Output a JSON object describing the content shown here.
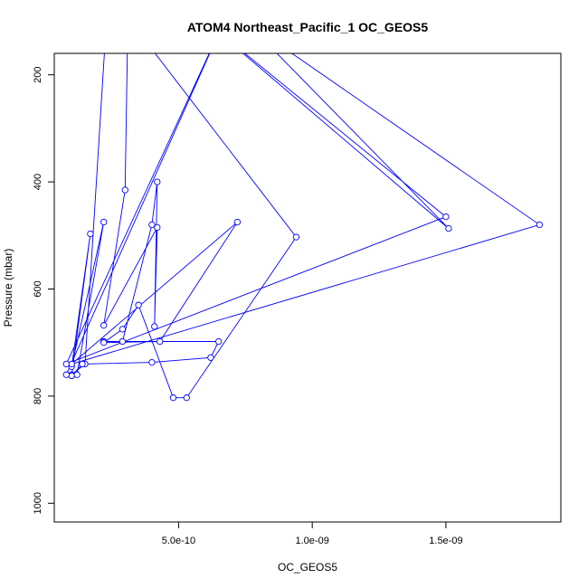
{
  "chart_data": {
    "type": "line",
    "title": "ATOM4 Northeast_Pacific_1 OC_GEOS5",
    "xlabel": "OC_GEOS5",
    "ylabel": "Pressure (mbar)",
    "xlim": [
      3.5e-11,
      1.93e-09
    ],
    "ylim": [
      1035,
      160
    ],
    "y_reversed": true,
    "x_ticks": [
      5e-10,
      1e-09,
      1.5e-09
    ],
    "x_tick_labels": [
      "5.0e-10",
      "1.0e-09",
      "1.5e-09"
    ],
    "y_ticks": [
      200,
      400,
      600,
      800,
      1000
    ],
    "y_tick_labels": [
      "200",
      "400",
      "600",
      "800",
      "1000"
    ],
    "grid": false,
    "colors": {
      "series": "#0000ff",
      "axis": "#000000"
    },
    "series": [
      {
        "points": [
          [
            2.3e-10,
            100
          ],
          [
            1.5e-10,
            740
          ],
          [
            1e-10,
            760
          ],
          [
            1e-10,
            762
          ],
          [
            1.2e-10,
            760
          ],
          [
            2.2e-10,
            475
          ],
          [
            1e-10,
            745
          ],
          [
            1.7e-10,
            497
          ],
          [
            1e-10,
            762
          ],
          [
            1.4e-10,
            740
          ],
          [
            4e-10,
            737
          ],
          [
            6.2e-10,
            728
          ],
          [
            6.5e-10,
            698
          ],
          [
            2.2e-10,
            698
          ],
          [
            2.9e-10,
            698
          ],
          [
            4e-10,
            480
          ],
          [
            4.2e-10,
            400
          ],
          [
            4.1e-10,
            670
          ],
          [
            4.2e-10,
            485
          ],
          [
            2.2e-10,
            668
          ],
          [
            3e-10,
            415
          ],
          [
            3.1e-10,
            100
          ],
          [
            3.2e-10,
            100
          ],
          [
            9.4e-10,
            503
          ],
          [
            5.3e-10,
            803
          ],
          [
            4.8e-10,
            803
          ],
          [
            3.5e-10,
            630
          ],
          [
            2.9e-10,
            675
          ],
          [
            2.2e-10,
            700
          ],
          [
            4.3e-10,
            698
          ],
          [
            7.2e-10,
            475
          ],
          [
            1e-10,
            740
          ],
          [
            1.85e-09,
            480
          ],
          [
            7.5e-10,
            100
          ],
          [
            1.51e-09,
            487
          ],
          [
            6e-10,
            100
          ],
          [
            1.5e-09,
            465
          ],
          [
            8e-11,
            740
          ],
          [
            6.7e-10,
            100
          ],
          [
            8e-11,
            760
          ]
        ]
      }
    ]
  }
}
